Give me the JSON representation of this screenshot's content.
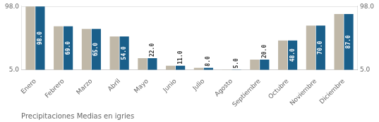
{
  "chart_data": {
    "type": "bar",
    "xlabel": "Precipitaciones Medias en igries",
    "categories": [
      "Enero",
      "Febrero",
      "Marzo",
      "Abril",
      "Mayo",
      "Junio",
      "Julio",
      "Agosto",
      "Septiembre",
      "Octubre",
      "Noviembre",
      "Diciembre"
    ],
    "series": [
      {
        "color": "#c0b8a8",
        "values": [
          98.0,
          69.0,
          65.0,
          54.0,
          22.0,
          11.0,
          8.0,
          5.0,
          20.0,
          48.0,
          70.0,
          87.0
        ]
      },
      {
        "color": "#1a5f8a",
        "values": [
          98.0,
          69.0,
          65.0,
          54.0,
          22.0,
          11.0,
          8.0,
          5.0,
          20.0,
          48.0,
          70.0,
          87.0
        ],
        "value_labels": [
          "98.0",
          "69.0",
          "65.0",
          "54.0",
          "22.0",
          "11.0",
          "8.0",
          "5.0",
          "20.0",
          "48.0",
          "70.0",
          "87.0"
        ]
      }
    ],
    "data_labels": true,
    "ylim": [
      5,
      99
    ],
    "yticks": [
      {
        "value": 5,
        "label": "5.0"
      },
      {
        "value": 98,
        "label": "98.0"
      }
    ],
    "y2lim": [
      5,
      99
    ],
    "y2ticks": [
      {
        "value": 5,
        "label": "5.0"
      },
      {
        "value": 98,
        "label": "98.0"
      }
    ],
    "grid": true
  }
}
